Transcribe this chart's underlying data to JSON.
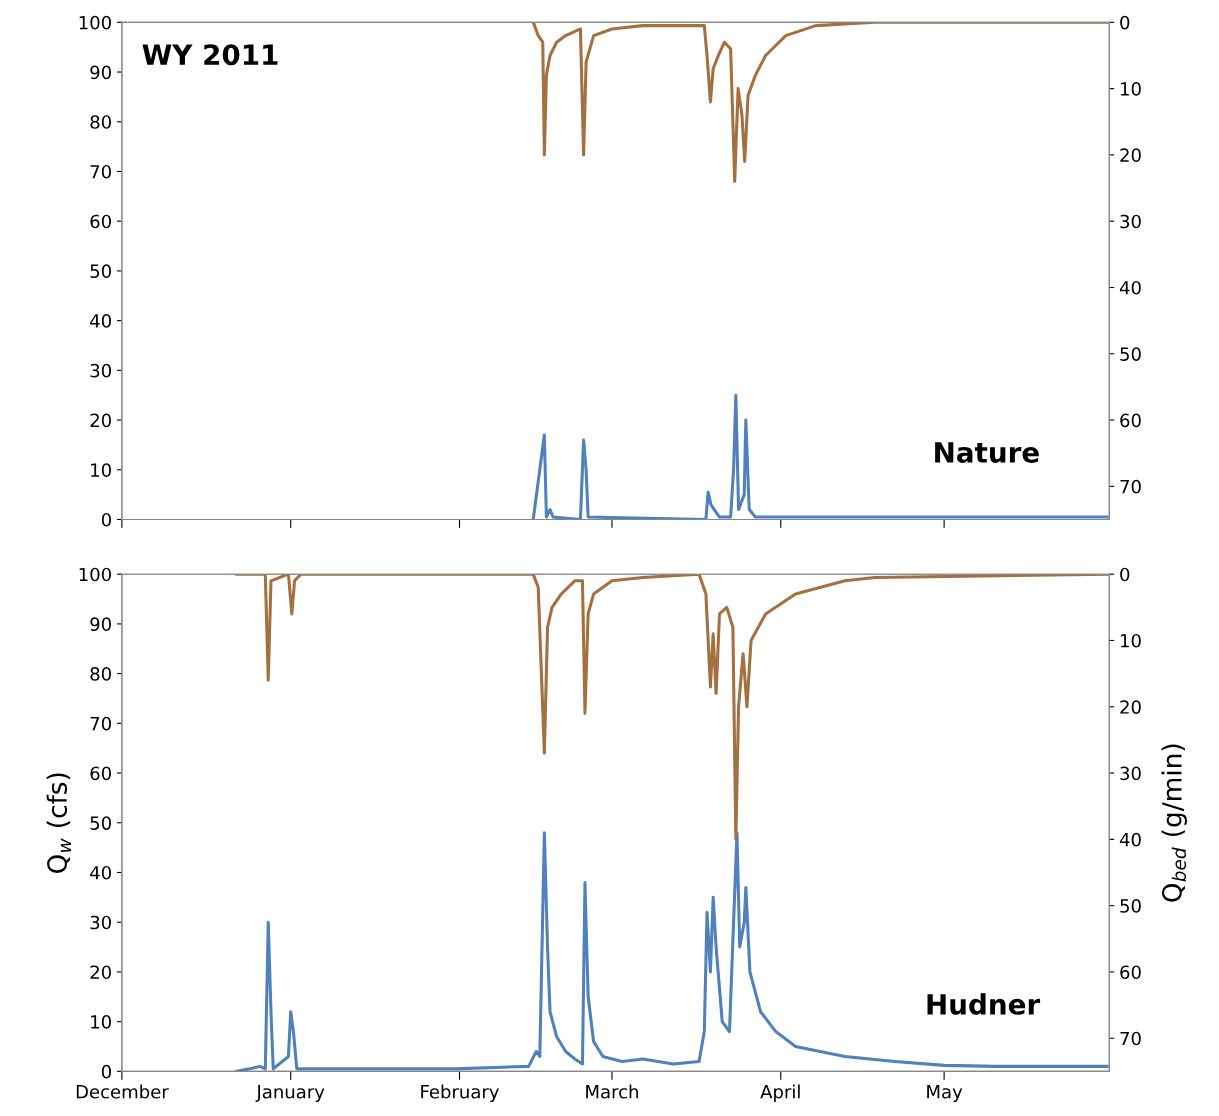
{
  "chart_data": [
    {
      "type": "line",
      "annotations": [
        "WY 2011",
        "Nature"
      ],
      "xlim": [
        "2010-12-01",
        "2011-05-31T08:00"
      ],
      "xticks": [
        {
          "value": "2010-12-01",
          "label": null
        },
        {
          "value": "2011-01-01",
          "label": null
        },
        {
          "value": "2011-02-01",
          "label": null
        },
        {
          "value": "2011-03-01",
          "label": null
        },
        {
          "value": "2011-04-01",
          "label": null
        },
        {
          "value": "2011-05-01",
          "label": null
        }
      ],
      "ylim": [
        0,
        100
      ],
      "yticks": [
        0,
        10,
        20,
        30,
        40,
        50,
        60,
        70,
        80,
        90,
        100
      ],
      "y2lim": [
        75,
        0
      ],
      "y2ticks": [
        0,
        10,
        20,
        30,
        40,
        50,
        60,
        70
      ],
      "tick_labels": "y",
      "grid": false,
      "legend": false,
      "line_style": "solid",
      "marker": "none",
      "series": [
        {
          "color": "#4f81bd",
          "x": [
            "2011-02-14T13:00",
            "2011-02-16T14:00",
            "2011-02-16T23:00",
            "2011-02-17T15:00",
            "2011-02-18T04:00",
            "2011-02-23T05:00",
            "2011-02-23T19:00",
            "2011-02-24T06:00",
            "2011-02-24T15:00",
            "2011-03-18T06:00",
            "2011-03-18T16:00",
            "2011-03-19T04:00",
            "2011-03-19T19:00",
            "2011-03-20T18:00",
            "2011-03-22T19:00",
            "2011-03-23T08:00",
            "2011-03-23T18:00",
            "2011-03-24T06:00",
            "2011-03-25T07:00",
            "2011-03-25T14:00",
            "2011-03-26T05:00",
            "2011-03-27T08:00",
            "2011-05-30T23:00"
          ],
          "values": [
            0,
            17,
            0.5,
            2,
            0.5,
            0,
            16,
            10,
            0.5,
            0,
            5.5,
            3,
            2,
            0.5,
            0.5,
            10,
            25,
            2,
            5,
            20,
            2,
            0.5,
            0.5
          ]
        },
        {
          "color": "#a5703f",
          "axis": "y2",
          "x": [
            "2011-02-14T13:00",
            "2011-02-15T11:00",
            "2011-02-16T07:00",
            "2011-02-16T14:00",
            "2011-02-16T23:00",
            "2011-02-17T15:00",
            "2011-02-18T20:00",
            "2011-02-20T12:00",
            "2011-02-23T05:00",
            "2011-02-23T19:00",
            "2011-02-24T06:00",
            "2011-02-25T15:00",
            "2011-03-01T00:00",
            "2011-03-06T16:00",
            "2011-03-17T23:00",
            "2011-03-18T11:00",
            "2011-03-19T02:00",
            "2011-03-19T14:00",
            "2011-03-20T13:00",
            "2011-03-21T16:00",
            "2011-03-22T19:00",
            "2011-03-23T13:00",
            "2011-03-24T04:00",
            "2011-03-24T21:00",
            "2011-03-25T09:00",
            "2011-03-26T00:00",
            "2011-03-27T08:00",
            "2011-03-29T05:00",
            "2011-04-01T22:00",
            "2011-04-07T10:00",
            "2011-04-18T07:00",
            "2011-05-30T23:00"
          ],
          "values": [
            0,
            2,
            3,
            20,
            8,
            5,
            3,
            2,
            1,
            20,
            6,
            2,
            1,
            0.5,
            0.5,
            5,
            12,
            7,
            5,
            3,
            4,
            24,
            10,
            14,
            21,
            11,
            8,
            5,
            2,
            0.5,
            0,
            0
          ]
        }
      ]
    },
    {
      "type": "line",
      "annotations": [
        "Hudner"
      ],
      "ylabel": "Q$_{w}$ (cfs)",
      "y2label": "Q$_{bed}$ (g/min)",
      "xlim": [
        "2010-12-01",
        "2011-05-31T08:00"
      ],
      "xticks": [
        {
          "value": "2010-12-01",
          "label": "December"
        },
        {
          "value": "2011-01-01",
          "label": "January"
        },
        {
          "value": "2011-02-01",
          "label": "February"
        },
        {
          "value": "2011-03-01",
          "label": "March"
        },
        {
          "value": "2011-04-01",
          "label": "April"
        },
        {
          "value": "2011-05-01",
          "label": "May"
        }
      ],
      "ylim": [
        0,
        100
      ],
      "yticks": [
        0,
        10,
        20,
        30,
        40,
        50,
        60,
        70,
        80,
        90,
        100
      ],
      "y2lim": [
        75,
        0
      ],
      "y2ticks": [
        0,
        10,
        20,
        30,
        40,
        50,
        60,
        70
      ],
      "grid": false,
      "legend": false,
      "line_style": "solid",
      "marker": "none",
      "series": [
        {
          "color": "#4f81bd",
          "x": [
            "2010-12-22T02:00",
            "2010-12-24T11:00",
            "2010-12-26T08:00",
            "2010-12-27T08:00",
            "2010-12-27T21:00",
            "2010-12-28T09:00",
            "2010-12-28T19:00",
            "2010-12-31T14:00",
            "2011-01-01T00:00",
            "2011-01-01T12:00",
            "2011-01-02T03:00",
            "2011-01-31T02:00",
            "2011-02-13T17:00",
            "2011-02-15T02:00",
            "2011-02-15T18:00",
            "2011-02-16T14:00",
            "2011-02-17T04:00",
            "2011-02-17T15:00",
            "2011-02-18T20:00",
            "2011-02-20T12:00",
            "2011-02-22T04:00",
            "2011-02-23T14:00",
            "2011-02-24T01:00",
            "2011-02-24T15:00",
            "2011-02-25T15:00",
            "2011-02-27T08:00",
            "2011-03-02T21:00",
            "2011-03-06T16:00",
            "2011-03-12T06:00",
            "2011-03-17T00:00",
            "2011-03-17T23:00",
            "2011-03-18T11:00",
            "2011-03-19T02:00",
            "2011-03-19T14:00",
            "2011-03-20T03:00",
            "2011-03-21T06:00",
            "2011-03-22T14:00",
            "2011-03-23T08:00",
            "2011-03-23T23:00",
            "2011-03-24T11:00",
            "2011-03-25T07:00",
            "2011-03-25T14:00",
            "2011-03-26T08:00",
            "2011-03-28T07:00",
            "2011-03-31T02:00",
            "2011-04-03T17:00",
            "2011-04-12T19:00",
            "2011-04-21T22:00",
            "2011-05-01T00:00",
            "2011-05-10T10:00",
            "2011-05-30T23:00"
          ],
          "values": [
            0,
            0.5,
            1,
            0.5,
            30,
            12,
            0.5,
            3,
            12,
            8,
            0.5,
            0.5,
            1,
            4,
            3,
            48,
            25,
            12,
            7,
            4,
            2.5,
            1.5,
            38,
            15,
            6,
            3,
            2,
            2.5,
            1.5,
            2,
            8,
            32,
            20,
            35,
            25,
            10,
            8,
            30,
            48,
            25,
            30,
            37,
            20,
            12,
            8,
            5,
            3,
            2,
            1.2,
            1,
            1
          ]
        },
        {
          "color": "#a5703f",
          "axis": "y2",
          "x": [
            "2010-12-22T02:00",
            "2010-12-27T08:00",
            "2010-12-27T21:00",
            "2010-12-28T09:00",
            "2010-12-31T14:00",
            "2011-01-01T05:00",
            "2011-01-01T17:00",
            "2011-01-02T21:00",
            "2011-02-14T13:00",
            "2011-02-15T11:00",
            "2011-02-16T14:00",
            "2011-02-17T04:00",
            "2011-02-18T00:00",
            "2011-02-19T16:00",
            "2011-02-22T04:00",
            "2011-02-23T14:00",
            "2011-02-24T01:00",
            "2011-02-24T15:00",
            "2011-02-25T15:00",
            "2011-03-01T00:00",
            "2011-03-06T16:00",
            "2011-03-17T00:00",
            "2011-03-18T06:00",
            "2011-03-19T02:00",
            "2011-03-19T14:00",
            "2011-03-20T03:00",
            "2011-03-20T18:00",
            "2011-03-22T02:00",
            "2011-03-23T05:00",
            "2011-03-23T18:00",
            "2011-03-24T06:00",
            "2011-03-25T02:00",
            "2011-03-25T19:00",
            "2011-03-26T13:00",
            "2011-03-29T05:00",
            "2011-04-03T17:00",
            "2011-04-12T19:00",
            "2011-04-18T07:00",
            "2011-05-30T23:00"
          ],
          "values": [
            0,
            0,
            16,
            1,
            0,
            6,
            1,
            0,
            0,
            2,
            27,
            8,
            5,
            3,
            1,
            1,
            21,
            6,
            3,
            1,
            0.5,
            0,
            3,
            17,
            9,
            18,
            6,
            5,
            8,
            40,
            20,
            12,
            20,
            10,
            6,
            3,
            1,
            0.5,
            0
          ]
        }
      ]
    }
  ]
}
